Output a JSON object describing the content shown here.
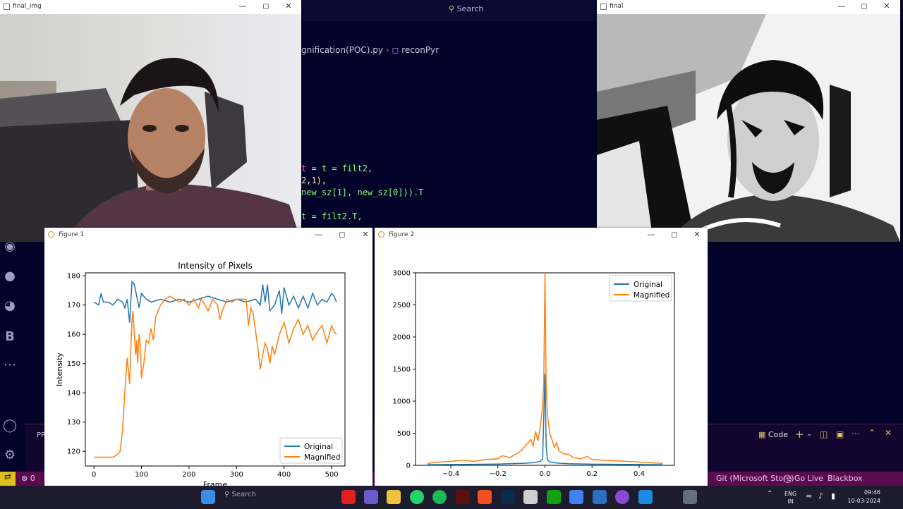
{
  "vscode": {
    "search_placeholder": "Search",
    "breadcrumb_file": "gnification(POC).py",
    "breadcrumb_symbol": "reconPyr",
    "code_lines": [
      "t = filt2,",
      "2,1),",
      "new_sz[1], new_sz[0])).T",
      "",
      "t = filt2.T,"
    ],
    "panel_label": "PR",
    "panel_code_label": "Code",
    "status_items": [
      "Git (Microsoft Store)",
      "Go Live",
      "Blackbox"
    ],
    "status_left": "0"
  },
  "win_final_img": {
    "title": "final_img"
  },
  "win_final": {
    "title": "final"
  },
  "figure1": {
    "title": "Figure 1",
    "chart_data": {
      "type": "line",
      "title": "Intensity of Pixels",
      "xlabel": "Frame",
      "ylabel": "Intensity",
      "xlim": [
        -18,
        528
      ],
      "ylim": [
        115,
        181
      ],
      "xticks": [
        0,
        100,
        200,
        300,
        400,
        500
      ],
      "yticks": [
        120,
        130,
        140,
        150,
        160,
        170,
        180
      ],
      "legend": "lower-right",
      "series": [
        {
          "name": "Original",
          "color": "#1f77b4",
          "x": [
            0,
            10,
            15,
            20,
            30,
            40,
            50,
            60,
            65,
            70,
            75,
            80,
            85,
            90,
            95,
            100,
            110,
            120,
            140,
            160,
            180,
            200,
            220,
            240,
            260,
            280,
            300,
            320,
            340,
            350,
            355,
            360,
            365,
            370,
            380,
            390,
            395,
            400,
            410,
            420,
            430,
            440,
            450,
            460,
            470,
            480,
            490,
            500,
            505,
            510
          ],
          "y": [
            171,
            170,
            174,
            171,
            171,
            170,
            172,
            171,
            169,
            172,
            164,
            178,
            177,
            173,
            169,
            174,
            172,
            171,
            172,
            171,
            172,
            171,
            172,
            173,
            172,
            171,
            172,
            171,
            172,
            170,
            177,
            171,
            177,
            168,
            170,
            175,
            167,
            176,
            170,
            173,
            169,
            173,
            169,
            174,
            170,
            172,
            171,
            174,
            173,
            171
          ]
        },
        {
          "name": "Magnified",
          "color": "#ff7f0e",
          "x": [
            0,
            10,
            20,
            30,
            40,
            50,
            55,
            60,
            65,
            70,
            75,
            80,
            82,
            85,
            88,
            90,
            92,
            95,
            98,
            100,
            105,
            110,
            115,
            120,
            125,
            130,
            140,
            150,
            160,
            170,
            180,
            190,
            200,
            210,
            220,
            225,
            230,
            240,
            250,
            260,
            265,
            270,
            280,
            290,
            300,
            310,
            320,
            325,
            330,
            335,
            340,
            345,
            350,
            355,
            360,
            365,
            370,
            375,
            380,
            390,
            400,
            410,
            420,
            430,
            440,
            450,
            460,
            470,
            480,
            490,
            500,
            505,
            510
          ],
          "y": [
            118,
            118,
            118,
            118,
            118,
            119,
            120,
            127,
            140,
            152,
            143,
            165,
            168,
            160,
            153,
            158,
            150,
            160,
            155,
            145,
            150,
            158,
            157,
            162,
            158,
            166,
            170,
            172,
            173,
            172,
            171,
            172,
            170,
            172,
            169,
            172,
            171,
            168,
            172,
            170,
            165,
            168,
            172,
            171,
            172,
            172,
            172,
            163,
            169,
            167,
            161,
            155,
            148,
            153,
            157,
            155,
            150,
            156,
            153,
            160,
            164,
            157,
            162,
            165,
            160,
            163,
            158,
            161,
            163,
            157,
            163,
            161,
            160
          ]
        }
      ]
    }
  },
  "figure2": {
    "title": "Figure 2",
    "chart_data": {
      "type": "line",
      "title": "",
      "xlabel": "",
      "ylabel": "",
      "xlim": [
        -0.55,
        0.55
      ],
      "ylim": [
        0,
        3000
      ],
      "xticks": [
        -0.4,
        -0.2,
        0.0,
        0.2,
        0.4
      ],
      "yticks": [
        0,
        500,
        1000,
        1500,
        2000,
        2500,
        3000
      ],
      "legend": "upper-right",
      "series": [
        {
          "name": "Original",
          "color": "#1f77b4",
          "x": [
            -0.5,
            -0.4,
            -0.3,
            -0.2,
            -0.1,
            -0.05,
            -0.02,
            -0.01,
            0.0,
            0.005,
            0.01,
            0.02,
            0.05,
            0.1,
            0.2,
            0.3,
            0.4,
            0.5
          ],
          "y": [
            10,
            12,
            15,
            20,
            30,
            40,
            60,
            100,
            1430,
            300,
            90,
            50,
            35,
            25,
            18,
            15,
            12,
            10
          ]
        },
        {
          "name": "Magnified",
          "color": "#ff7f0e",
          "x": [
            -0.5,
            -0.45,
            -0.4,
            -0.35,
            -0.3,
            -0.25,
            -0.2,
            -0.18,
            -0.15,
            -0.12,
            -0.1,
            -0.08,
            -0.06,
            -0.05,
            -0.04,
            -0.03,
            -0.02,
            -0.01,
            -0.005,
            0.0,
            0.005,
            0.01,
            0.02,
            0.03,
            0.04,
            0.05,
            0.06,
            0.08,
            0.1,
            0.12,
            0.15,
            0.18,
            0.2,
            0.25,
            0.3,
            0.35,
            0.4,
            0.45,
            0.5
          ],
          "y": [
            30,
            50,
            60,
            80,
            60,
            90,
            100,
            150,
            120,
            180,
            230,
            320,
            400,
            300,
            530,
            380,
            600,
            900,
            1300,
            3000,
            1200,
            800,
            500,
            400,
            280,
            350,
            220,
            180,
            170,
            120,
            100,
            140,
            90,
            80,
            70,
            60,
            50,
            40,
            30
          ]
        }
      ]
    }
  },
  "taskbar": {
    "search_label": "Search",
    "lang": "ENG",
    "region": "IN",
    "time": "09:46",
    "date": "10-03-2024"
  },
  "toolbar_icons": [
    "home-icon",
    "back-icon",
    "forward-icon",
    "pan-icon",
    "zoom-icon",
    "configure-icon",
    "save-icon"
  ]
}
